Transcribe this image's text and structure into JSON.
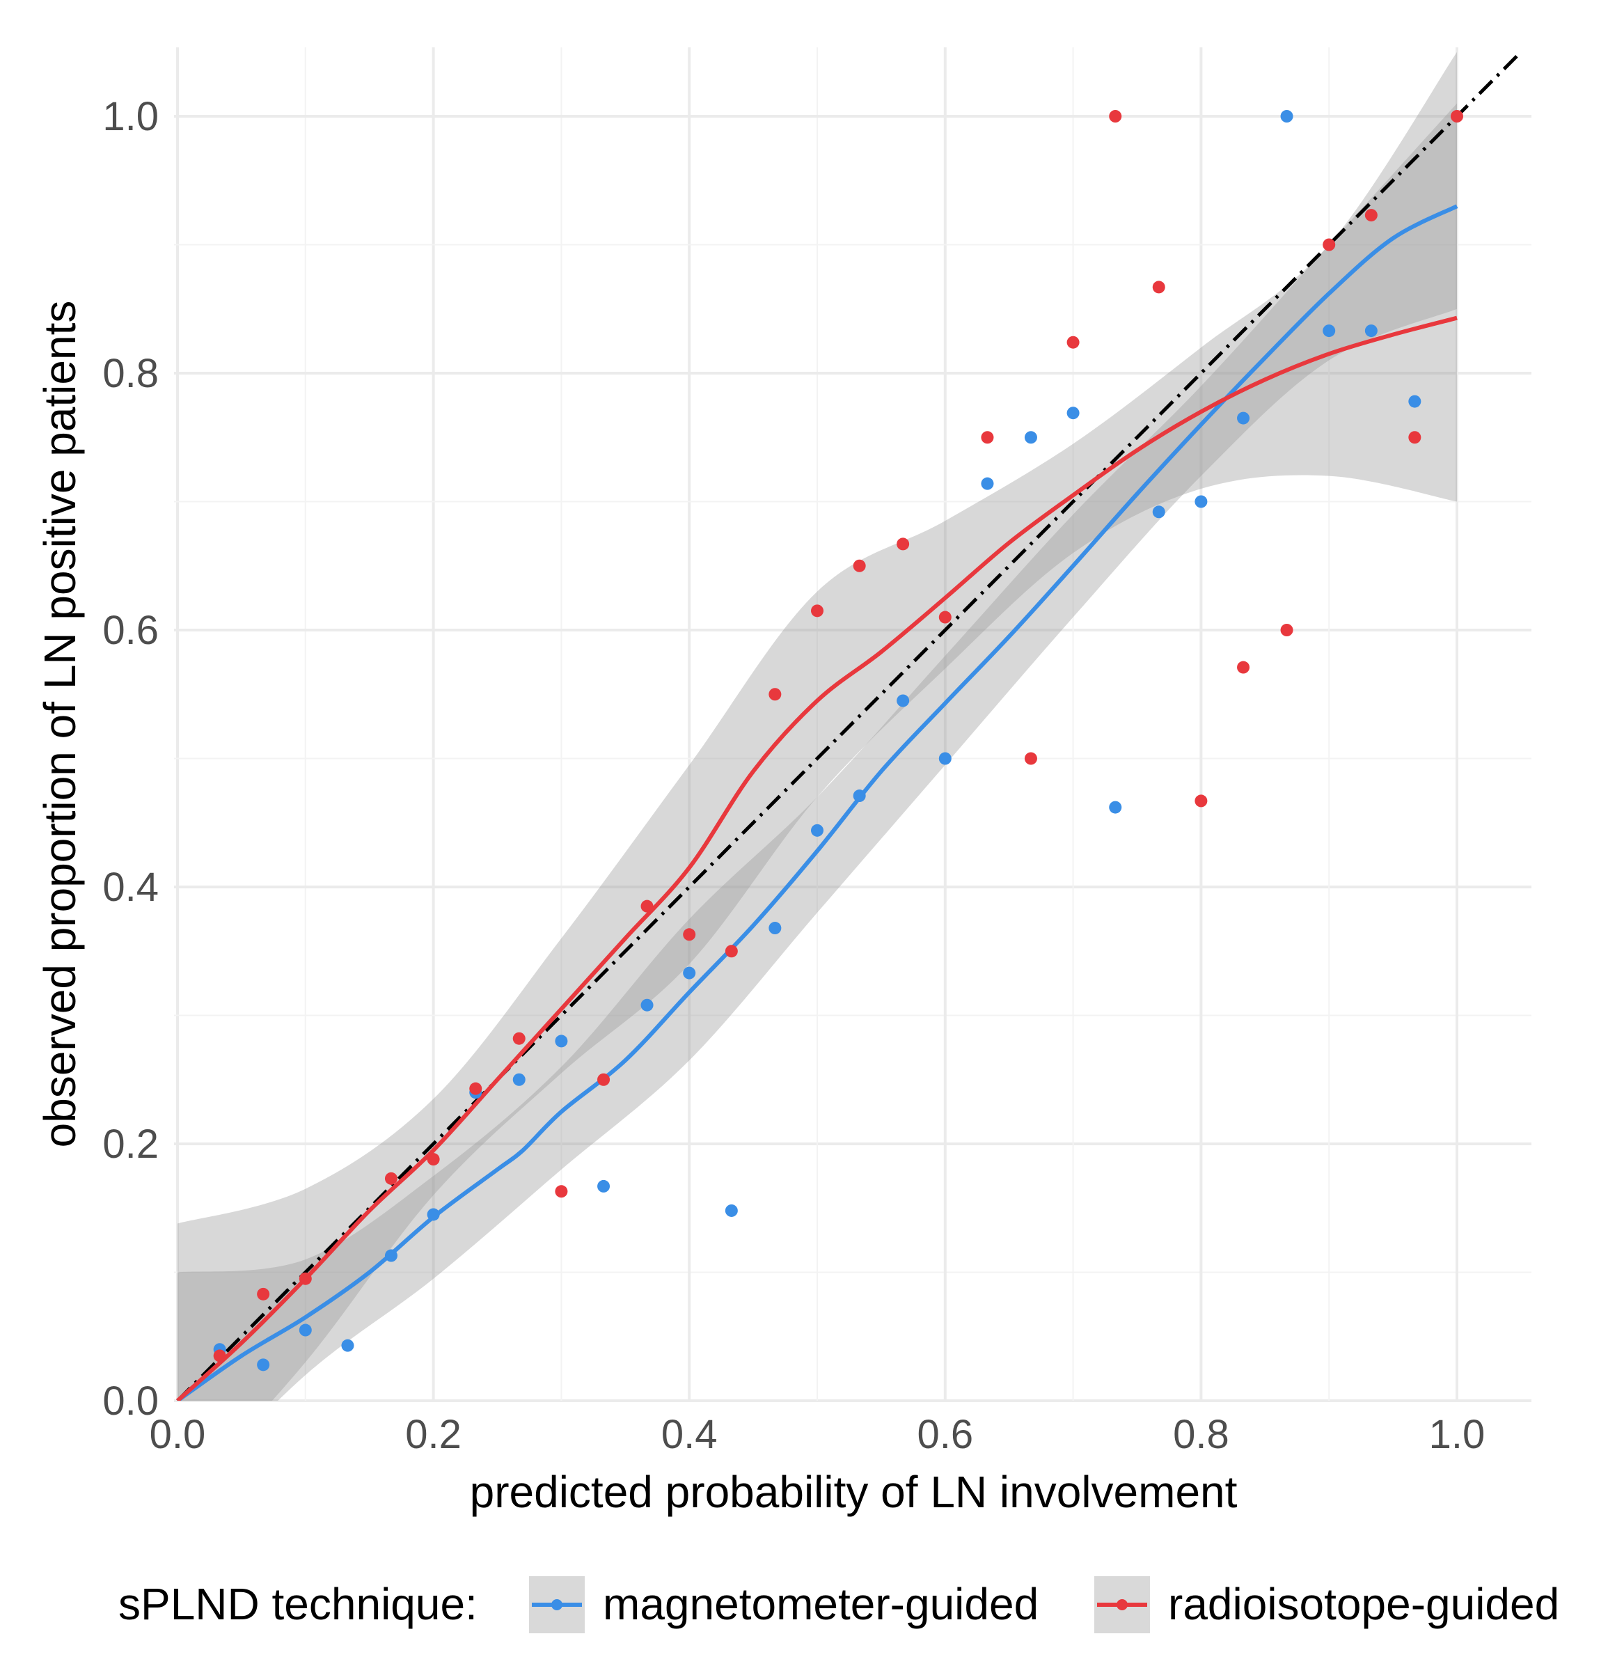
{
  "chart_data": {
    "type": "scatter",
    "title": "",
    "xlabel": "predicted probability of LN involvement",
    "ylabel": "observed proportion of LN positive patients",
    "xlim": [
      0.0,
      1.05
    ],
    "ylim": [
      0.0,
      1.04
    ],
    "x_ticks": [
      "0.0",
      "0.2",
      "0.4",
      "0.6",
      "0.8",
      "1.0"
    ],
    "y_ticks": [
      "0.0",
      "0.2",
      "0.4",
      "0.6",
      "0.8",
      "1.0"
    ],
    "grid": true,
    "reference_line": {
      "style": "dot-dash",
      "color": "#000000",
      "slope": 1,
      "intercept": 0
    },
    "legend": {
      "title": "sPLND technique:",
      "position": "bottom",
      "entries": [
        "magnetometer-guided",
        "radioisotope-guided"
      ]
    },
    "ribbon_color": "#999999",
    "series": [
      {
        "name": "magnetometer-guided",
        "color": "#3a8ee6",
        "points": [
          {
            "x": 0.033,
            "y": 0.04
          },
          {
            "x": 0.067,
            "y": 0.028
          },
          {
            "x": 0.1,
            "y": 0.055
          },
          {
            "x": 0.133,
            "y": 0.043
          },
          {
            "x": 0.167,
            "y": 0.113
          },
          {
            "x": 0.2,
            "y": 0.145
          },
          {
            "x": 0.233,
            "y": 0.24
          },
          {
            "x": 0.267,
            "y": 0.25
          },
          {
            "x": 0.3,
            "y": 0.28
          },
          {
            "x": 0.333,
            "y": 0.167
          },
          {
            "x": 0.367,
            "y": 0.308
          },
          {
            "x": 0.4,
            "y": 0.333
          },
          {
            "x": 0.433,
            "y": 0.148
          },
          {
            "x": 0.467,
            "y": 0.368
          },
          {
            "x": 0.5,
            "y": 0.444
          },
          {
            "x": 0.533,
            "y": 0.471
          },
          {
            "x": 0.567,
            "y": 0.545
          },
          {
            "x": 0.6,
            "y": 0.5
          },
          {
            "x": 0.633,
            "y": 0.714
          },
          {
            "x": 0.667,
            "y": 0.75
          },
          {
            "x": 0.7,
            "y": 0.769
          },
          {
            "x": 0.733,
            "y": 0.462
          },
          {
            "x": 0.767,
            "y": 0.692
          },
          {
            "x": 0.8,
            "y": 0.7
          },
          {
            "x": 0.833,
            "y": 0.765
          },
          {
            "x": 0.867,
            "y": 1.0
          },
          {
            "x": 0.9,
            "y": 0.833
          },
          {
            "x": 0.933,
            "y": 0.833
          },
          {
            "x": 0.967,
            "y": 0.778
          }
        ],
        "smooth": [
          {
            "x": 0.0,
            "y": 0.0
          },
          {
            "x": 0.05,
            "y": 0.035
          },
          {
            "x": 0.1,
            "y": 0.065
          },
          {
            "x": 0.15,
            "y": 0.1
          },
          {
            "x": 0.2,
            "y": 0.143
          },
          {
            "x": 0.25,
            "y": 0.18
          },
          {
            "x": 0.27,
            "y": 0.195
          },
          {
            "x": 0.3,
            "y": 0.225
          },
          {
            "x": 0.35,
            "y": 0.265
          },
          {
            "x": 0.4,
            "y": 0.318
          },
          {
            "x": 0.45,
            "y": 0.37
          },
          {
            "x": 0.5,
            "y": 0.428
          },
          {
            "x": 0.55,
            "y": 0.49
          },
          {
            "x": 0.6,
            "y": 0.543
          },
          {
            "x": 0.65,
            "y": 0.595
          },
          {
            "x": 0.7,
            "y": 0.65
          },
          {
            "x": 0.75,
            "y": 0.706
          },
          {
            "x": 0.8,
            "y": 0.76
          },
          {
            "x": 0.85,
            "y": 0.812
          },
          {
            "x": 0.9,
            "y": 0.862
          },
          {
            "x": 0.95,
            "y": 0.905
          },
          {
            "x": 1.0,
            "y": 0.93
          }
        ],
        "band_upper": [
          {
            "x": 0.0,
            "y": 0.1
          },
          {
            "x": 0.1,
            "y": 0.11
          },
          {
            "x": 0.2,
            "y": 0.175
          },
          {
            "x": 0.3,
            "y": 0.26
          },
          {
            "x": 0.4,
            "y": 0.375
          },
          {
            "x": 0.5,
            "y": 0.47
          },
          {
            "x": 0.6,
            "y": 0.58
          },
          {
            "x": 0.7,
            "y": 0.69
          },
          {
            "x": 0.8,
            "y": 0.79
          },
          {
            "x": 0.9,
            "y": 0.9
          },
          {
            "x": 1.0,
            "y": 1.01
          }
        ],
        "band_lower": [
          {
            "x": 0.0,
            "y": -0.08
          },
          {
            "x": 0.1,
            "y": 0.02
          },
          {
            "x": 0.2,
            "y": 0.095
          },
          {
            "x": 0.3,
            "y": 0.18
          },
          {
            "x": 0.4,
            "y": 0.265
          },
          {
            "x": 0.5,
            "y": 0.38
          },
          {
            "x": 0.6,
            "y": 0.495
          },
          {
            "x": 0.7,
            "y": 0.61
          },
          {
            "x": 0.8,
            "y": 0.72
          },
          {
            "x": 0.9,
            "y": 0.81
          },
          {
            "x": 1.0,
            "y": 0.85
          }
        ]
      },
      {
        "name": "radioisotope-guided",
        "color": "#e8383d",
        "points": [
          {
            "x": 0.033,
            "y": 0.035
          },
          {
            "x": 0.067,
            "y": 0.083
          },
          {
            "x": 0.1,
            "y": 0.095
          },
          {
            "x": 0.167,
            "y": 0.173
          },
          {
            "x": 0.2,
            "y": 0.188
          },
          {
            "x": 0.233,
            "y": 0.243
          },
          {
            "x": 0.267,
            "y": 0.282
          },
          {
            "x": 0.3,
            "y": 0.163
          },
          {
            "x": 0.333,
            "y": 0.25
          },
          {
            "x": 0.367,
            "y": 0.385
          },
          {
            "x": 0.4,
            "y": 0.363
          },
          {
            "x": 0.433,
            "y": 0.35
          },
          {
            "x": 0.467,
            "y": 0.55
          },
          {
            "x": 0.5,
            "y": 0.615
          },
          {
            "x": 0.533,
            "y": 0.65
          },
          {
            "x": 0.567,
            "y": 0.667
          },
          {
            "x": 0.6,
            "y": 0.61
          },
          {
            "x": 0.633,
            "y": 0.75
          },
          {
            "x": 0.667,
            "y": 0.5
          },
          {
            "x": 0.7,
            "y": 0.824
          },
          {
            "x": 0.733,
            "y": 1.0
          },
          {
            "x": 0.767,
            "y": 0.867
          },
          {
            "x": 0.8,
            "y": 0.467
          },
          {
            "x": 0.833,
            "y": 0.571
          },
          {
            "x": 0.867,
            "y": 0.6
          },
          {
            "x": 0.9,
            "y": 0.9
          },
          {
            "x": 0.933,
            "y": 0.923
          },
          {
            "x": 0.967,
            "y": 0.75
          },
          {
            "x": 1.0,
            "y": 1.0
          }
        ],
        "smooth": [
          {
            "x": 0.0,
            "y": 0.0
          },
          {
            "x": 0.05,
            "y": 0.045
          },
          {
            "x": 0.1,
            "y": 0.095
          },
          {
            "x": 0.15,
            "y": 0.148
          },
          {
            "x": 0.2,
            "y": 0.195
          },
          {
            "x": 0.25,
            "y": 0.25
          },
          {
            "x": 0.3,
            "y": 0.305
          },
          {
            "x": 0.35,
            "y": 0.36
          },
          {
            "x": 0.4,
            "y": 0.415
          },
          {
            "x": 0.45,
            "y": 0.49
          },
          {
            "x": 0.5,
            "y": 0.545
          },
          {
            "x": 0.55,
            "y": 0.583
          },
          {
            "x": 0.6,
            "y": 0.625
          },
          {
            "x": 0.65,
            "y": 0.668
          },
          {
            "x": 0.7,
            "y": 0.705
          },
          {
            "x": 0.75,
            "y": 0.74
          },
          {
            "x": 0.8,
            "y": 0.77
          },
          {
            "x": 0.85,
            "y": 0.795
          },
          {
            "x": 0.9,
            "y": 0.815
          },
          {
            "x": 0.95,
            "y": 0.83
          },
          {
            "x": 1.0,
            "y": 0.843
          }
        ],
        "band_upper": [
          {
            "x": 0.0,
            "y": 0.138
          },
          {
            "x": 0.1,
            "y": 0.165
          },
          {
            "x": 0.2,
            "y": 0.235
          },
          {
            "x": 0.3,
            "y": 0.36
          },
          {
            "x": 0.4,
            "y": 0.495
          },
          {
            "x": 0.5,
            "y": 0.63
          },
          {
            "x": 0.6,
            "y": 0.685
          },
          {
            "x": 0.7,
            "y": 0.745
          },
          {
            "x": 0.8,
            "y": 0.82
          },
          {
            "x": 0.9,
            "y": 0.9
          },
          {
            "x": 1.0,
            "y": 1.05
          }
        ],
        "band_lower": [
          {
            "x": 0.0,
            "y": -0.08
          },
          {
            "x": 0.1,
            "y": 0.03
          },
          {
            "x": 0.2,
            "y": 0.16
          },
          {
            "x": 0.3,
            "y": 0.255
          },
          {
            "x": 0.4,
            "y": 0.34
          },
          {
            "x": 0.5,
            "y": 0.47
          },
          {
            "x": 0.6,
            "y": 0.57
          },
          {
            "x": 0.7,
            "y": 0.66
          },
          {
            "x": 0.8,
            "y": 0.71
          },
          {
            "x": 0.9,
            "y": 0.72
          },
          {
            "x": 1.0,
            "y": 0.7
          }
        ]
      }
    ]
  }
}
